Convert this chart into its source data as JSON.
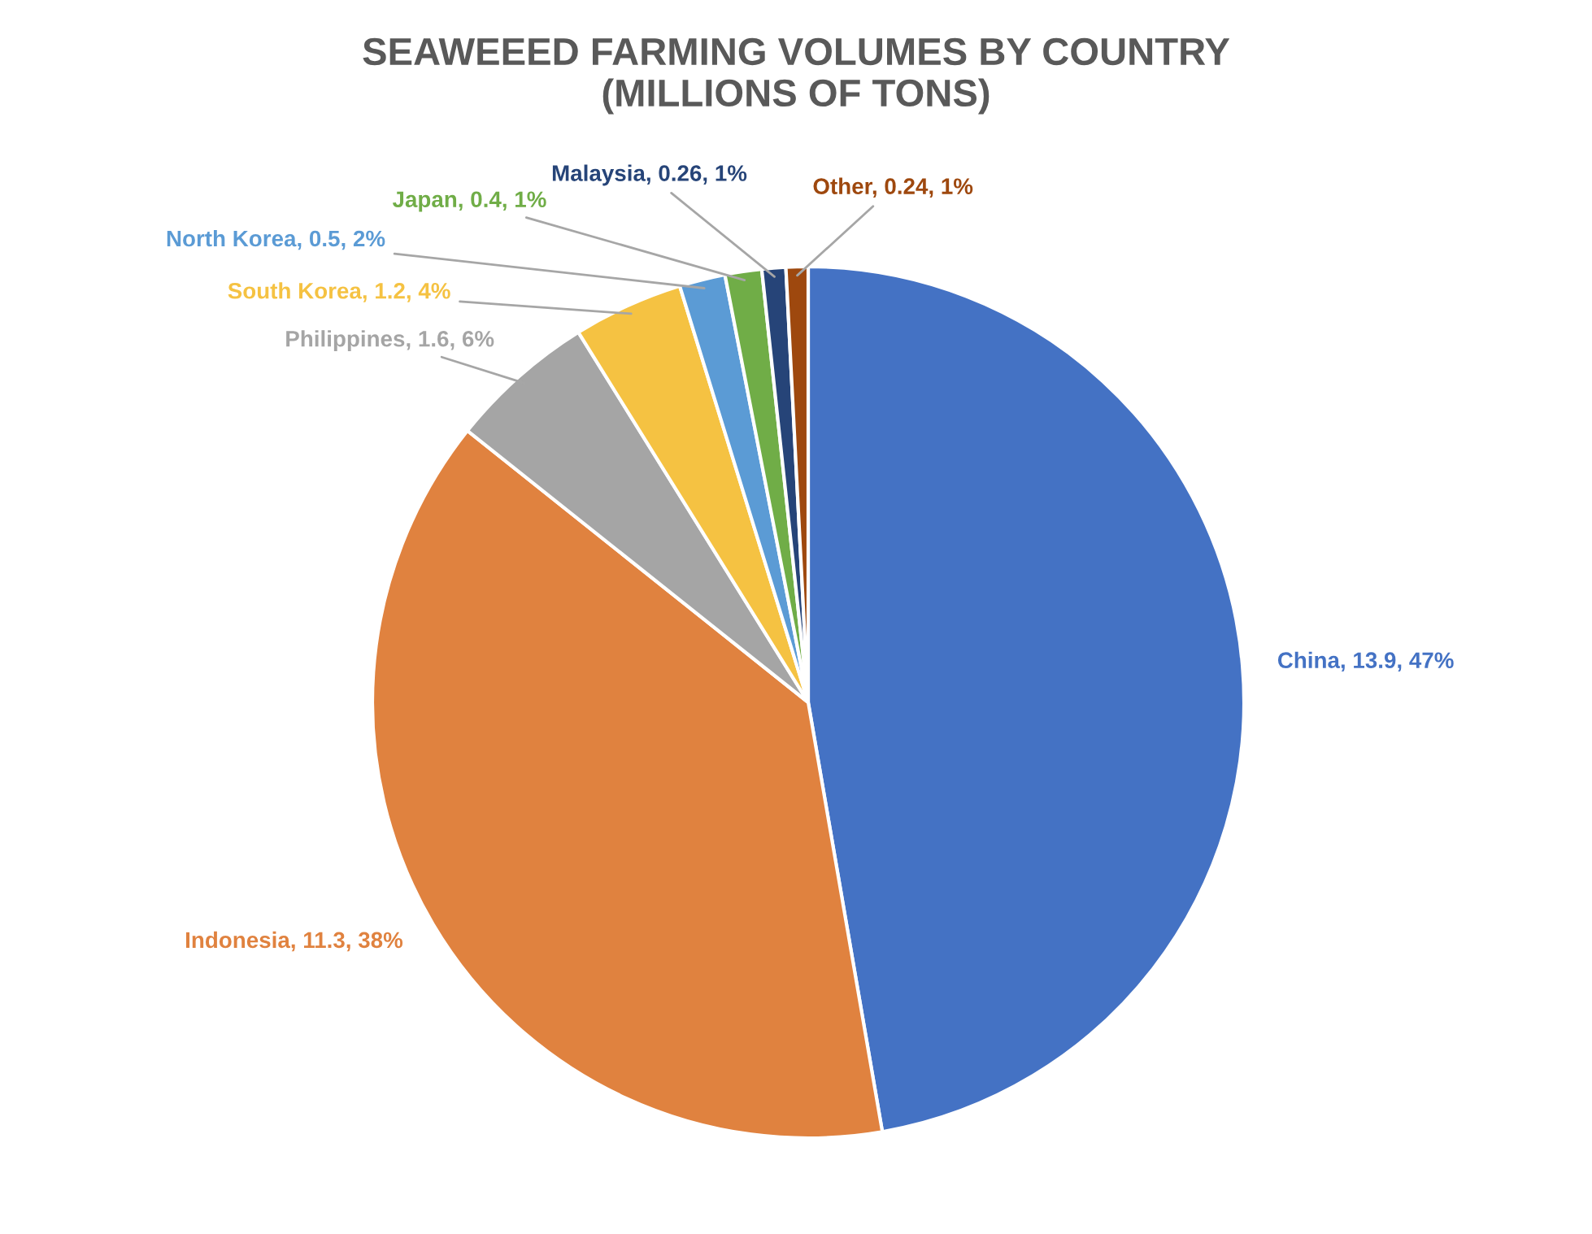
{
  "chart_data": {
    "type": "pie",
    "title": "SEAWEEED FARMING VOLUMES BY COUNTRY\n(MILLIONS OF TONS)",
    "categories": [
      "China",
      "Indonesia",
      "Philippines",
      "South Korea",
      "North Korea",
      "Japan",
      "Malaysia",
      "Other"
    ],
    "values": [
      13.9,
      11.3,
      1.6,
      1.2,
      0.5,
      0.4,
      0.26,
      0.24
    ],
    "colors": [
      "#4472c4",
      "#e0823f",
      "#a5a5a5",
      "#f5c242",
      "#5b9bd5",
      "#70ad47",
      "#264478",
      "#9e480e"
    ],
    "value_labels": [
      "13.9, 47%",
      "11.3, 38%",
      "1.6, 6%",
      "1.2, 4%",
      "0.5, 2%",
      "0.4, 1%",
      "0.26, 1%",
      "0.24, 1%"
    ],
    "legend": false
  }
}
